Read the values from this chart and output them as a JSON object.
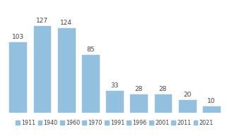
{
  "categories": [
    "1911",
    "1940",
    "1960",
    "1970",
    "1991",
    "1996",
    "2001",
    "2011",
    "2021"
  ],
  "values": [
    103,
    127,
    124,
    85,
    33,
    28,
    28,
    20,
    10
  ],
  "bar_color": "#92c0de",
  "bar_edge_color": "#ffffff",
  "background_color": "#ffffff",
  "grid_color": "#d5d5d5",
  "text_color": "#404040",
  "label_fontsize": 6.5,
  "legend_fontsize": 5.8,
  "ylim": [
    0,
    148
  ],
  "bar_width": 0.75
}
